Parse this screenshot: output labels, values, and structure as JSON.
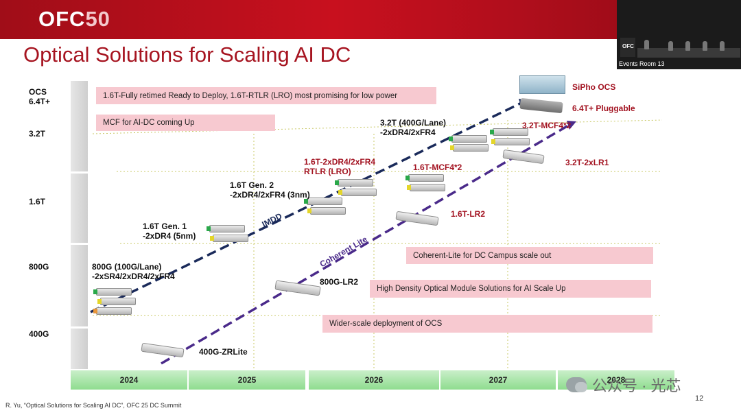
{
  "header": {
    "logo_text": "OFC",
    "logo_number": "50",
    "title": "Optical Solutions for Scaling AI DC"
  },
  "video_inset": {
    "caption": "Events Room 13",
    "logo": "OFC"
  },
  "y_axis": [
    "OCS\n6.4T+",
    "3.2T",
    "1.6T",
    "800G",
    "400G"
  ],
  "boxes": [
    "1.6T-Fully retimed Ready to Deploy,  1.6T-RTLR (LRO) most promising for low power",
    "MCF for AI-DC coming Up",
    "Coherent-Lite for DC Campus scale out",
    "High Density Optical Module Solutions for AI Scale Up",
    "Wider-scale deployment of OCS"
  ],
  "labels": {
    "l800g": "800G (100G/Lane)\n-2xSR4/2xDR4/2xFR4",
    "gen1": "1.6T Gen. 1\n-2xDR4 (5nm)",
    "gen2": "1.6T Gen. 2\n-2xDR4/2xFR4 (3nm)",
    "rtlr": "1.6T-2xDR4/2xFR4\nRTLR (LRO)",
    "t32": "3.2T (400G/Lane)\n-2xDR4/2xFR4",
    "mcf16": "1.6T-MCF4*2",
    "mcf32": "3.2T-MCF4*2",
    "lr1": "3.2T-2xLR1",
    "lr2_16": "1.6T-LR2",
    "lr2_800": "800G-LR2",
    "zr": "400G-ZRLite",
    "sipho": "SiPho OCS",
    "pluggable": "6.4T+ Pluggable",
    "imdd": "IMDD",
    "coherent": "Coherent Lite"
  },
  "years": [
    "2024",
    "2025",
    "2026",
    "2027",
    "2028"
  ],
  "footer": {
    "citation": "R. Yu, “Optical Solutions for Scaling AI DC”, OFC 25 DC Summit",
    "page": "12"
  },
  "watermark": "公众号 · 光芯",
  "colors": {
    "brand_red": "#a61420",
    "box_pink": "#f7c9d0",
    "year_green": "#a8e4a8",
    "imdd_line": "#1a2a5a",
    "coherent_line": "#4a2a8a"
  }
}
